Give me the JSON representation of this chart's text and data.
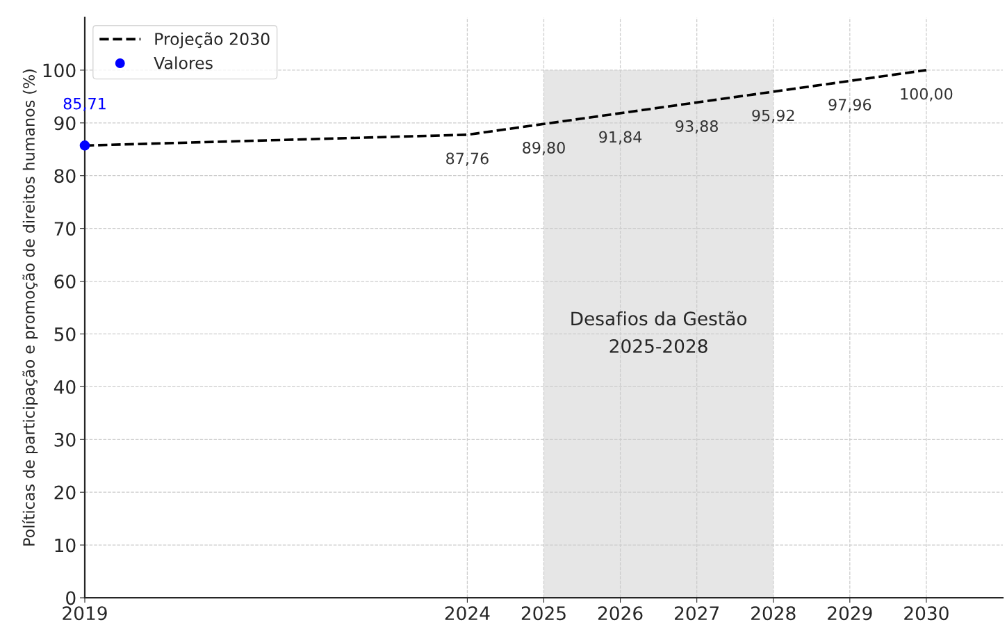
{
  "chart_data": {
    "type": "line",
    "ylabel": "Políticas de participação e promoção de direitos humanos (%)",
    "x": [
      2019,
      2024,
      2025,
      2026,
      2027,
      2028,
      2029,
      2030
    ],
    "series": [
      {
        "name": "Projeção 2030",
        "color": "#000000",
        "line_style": "dashed",
        "marker": "none",
        "values": [
          85.71,
          87.76,
          89.8,
          91.84,
          93.88,
          95.92,
          97.96,
          100.0
        ],
        "value_labels": [
          null,
          "87,76",
          "89,80",
          "91,84",
          "93,88",
          "95,92",
          "97,96",
          "100,00"
        ]
      },
      {
        "name": "Valores",
        "type": "scatter",
        "color": "#0000ff",
        "marker": "circle",
        "x": [
          2019
        ],
        "values": [
          85.71
        ],
        "value_labels": [
          "85,71"
        ]
      }
    ],
    "bands": [
      {
        "axis": "x",
        "from": 2025,
        "to": 2028,
        "label": "Desafios da Gestão\n2025-2028",
        "color": "#e6e6e6"
      }
    ],
    "xlim": [
      2019,
      2031
    ],
    "xticks": [
      2019,
      2024,
      2025,
      2026,
      2027,
      2028,
      2029,
      2030
    ],
    "ylim": [
      0,
      110
    ],
    "yticks": [
      0,
      10,
      20,
      30,
      40,
      50,
      60,
      70,
      80,
      90,
      100
    ],
    "grid": true,
    "legend": "top left"
  }
}
